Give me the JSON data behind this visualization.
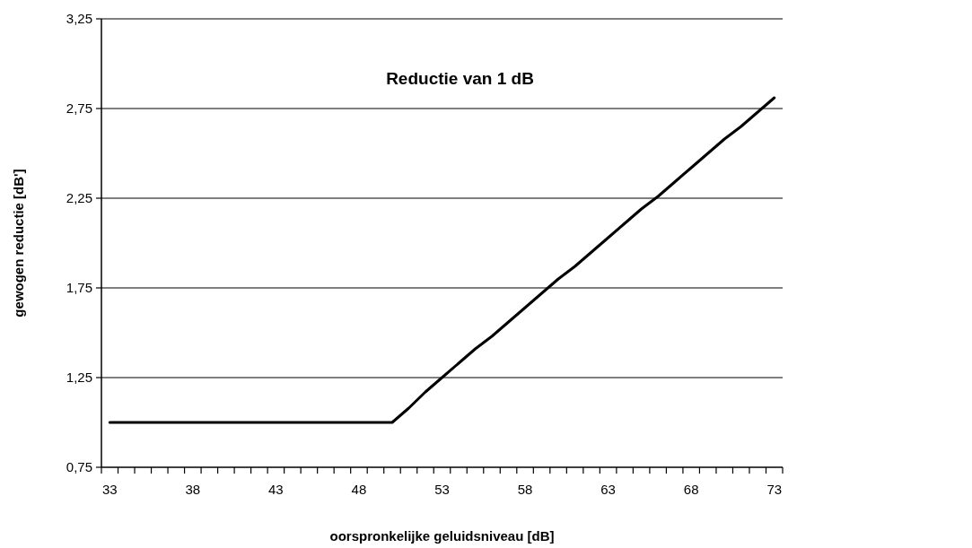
{
  "chart_data": {
    "type": "line",
    "title": "Reductie van 1 dB",
    "xlabel": "oorspronkelijke geluidsniveau [dB]",
    "ylabel": "gewogen reductie [dB']",
    "x": [
      33,
      34,
      35,
      36,
      37,
      38,
      39,
      40,
      41,
      42,
      43,
      44,
      45,
      46,
      47,
      48,
      49,
      50,
      51,
      52,
      53,
      54,
      55,
      56,
      57,
      58,
      59,
      60,
      61,
      62,
      63,
      64,
      65,
      66,
      67,
      68,
      69,
      70,
      71,
      72,
      73
    ],
    "series": [
      {
        "color": "#000000",
        "values": [
          1,
          1,
          1,
          1,
          1,
          1,
          1,
          1,
          1,
          1,
          1,
          1,
          1,
          1,
          1,
          1,
          1,
          1,
          1.08,
          1.17,
          1.25,
          1.33,
          1.41,
          1.48,
          1.56,
          1.64,
          1.72,
          1.8,
          1.87,
          1.95,
          2.03,
          2.11,
          2.19,
          2.26,
          2.34,
          2.42,
          2.5,
          2.58,
          2.65,
          2.73,
          2.81
        ]
      }
    ],
    "xlim": [
      32.5,
      73.5
    ],
    "xticks": [
      {
        "value": 32.5,
        "label": null
      },
      {
        "value": 33.5,
        "label": null
      },
      {
        "value": 34.5,
        "label": null
      },
      {
        "value": 35.5,
        "label": null
      },
      {
        "value": 36.5,
        "label": null
      },
      {
        "value": 37.5,
        "label": null
      },
      {
        "value": 38.5,
        "label": null
      },
      {
        "value": 39.5,
        "label": null
      },
      {
        "value": 40.5,
        "label": null
      },
      {
        "value": 41.5,
        "label": null
      },
      {
        "value": 42.5,
        "label": null
      },
      {
        "value": 43.5,
        "label": null
      },
      {
        "value": 44.5,
        "label": null
      },
      {
        "value": 45.5,
        "label": null
      },
      {
        "value": 46.5,
        "label": null
      },
      {
        "value": 47.5,
        "label": null
      },
      {
        "value": 48.5,
        "label": null
      },
      {
        "value": 49.5,
        "label": null
      },
      {
        "value": 50.5,
        "label": null
      },
      {
        "value": 51.5,
        "label": null
      },
      {
        "value": 52.5,
        "label": null
      },
      {
        "value": 53.5,
        "label": null
      },
      {
        "value": 54.5,
        "label": null
      },
      {
        "value": 55.5,
        "label": null
      },
      {
        "value": 56.5,
        "label": null
      },
      {
        "value": 57.5,
        "label": null
      },
      {
        "value": 58.5,
        "label": null
      },
      {
        "value": 59.5,
        "label": null
      },
      {
        "value": 60.5,
        "label": null
      },
      {
        "value": 61.5,
        "label": null
      },
      {
        "value": 62.5,
        "label": null
      },
      {
        "value": 63.5,
        "label": null
      },
      {
        "value": 64.5,
        "label": null
      },
      {
        "value": 65.5,
        "label": null
      },
      {
        "value": 66.5,
        "label": null
      },
      {
        "value": 67.5,
        "label": null
      },
      {
        "value": 68.5,
        "label": null
      },
      {
        "value": 69.5,
        "label": null
      },
      {
        "value": 70.5,
        "label": null
      },
      {
        "value": 71.5,
        "label": null
      },
      {
        "value": 72.5,
        "label": null
      },
      {
        "value": 73.5,
        "label": null
      },
      33,
      38,
      43,
      48,
      53,
      58,
      63,
      68,
      73
    ],
    "ylim": [
      0.75,
      3.25
    ],
    "yticks": [
      {
        "value": 0.75,
        "label": "0,75"
      },
      {
        "value": 1.25,
        "label": "1,25"
      },
      {
        "value": 1.75,
        "label": "1,75"
      },
      {
        "value": 2.25,
        "label": "2,25"
      },
      {
        "value": 2.75,
        "label": "2,75"
      },
      {
        "value": 3.25,
        "label": "3,25"
      }
    ],
    "grid": "y",
    "marker": "none",
    "line_style": "solid"
  }
}
